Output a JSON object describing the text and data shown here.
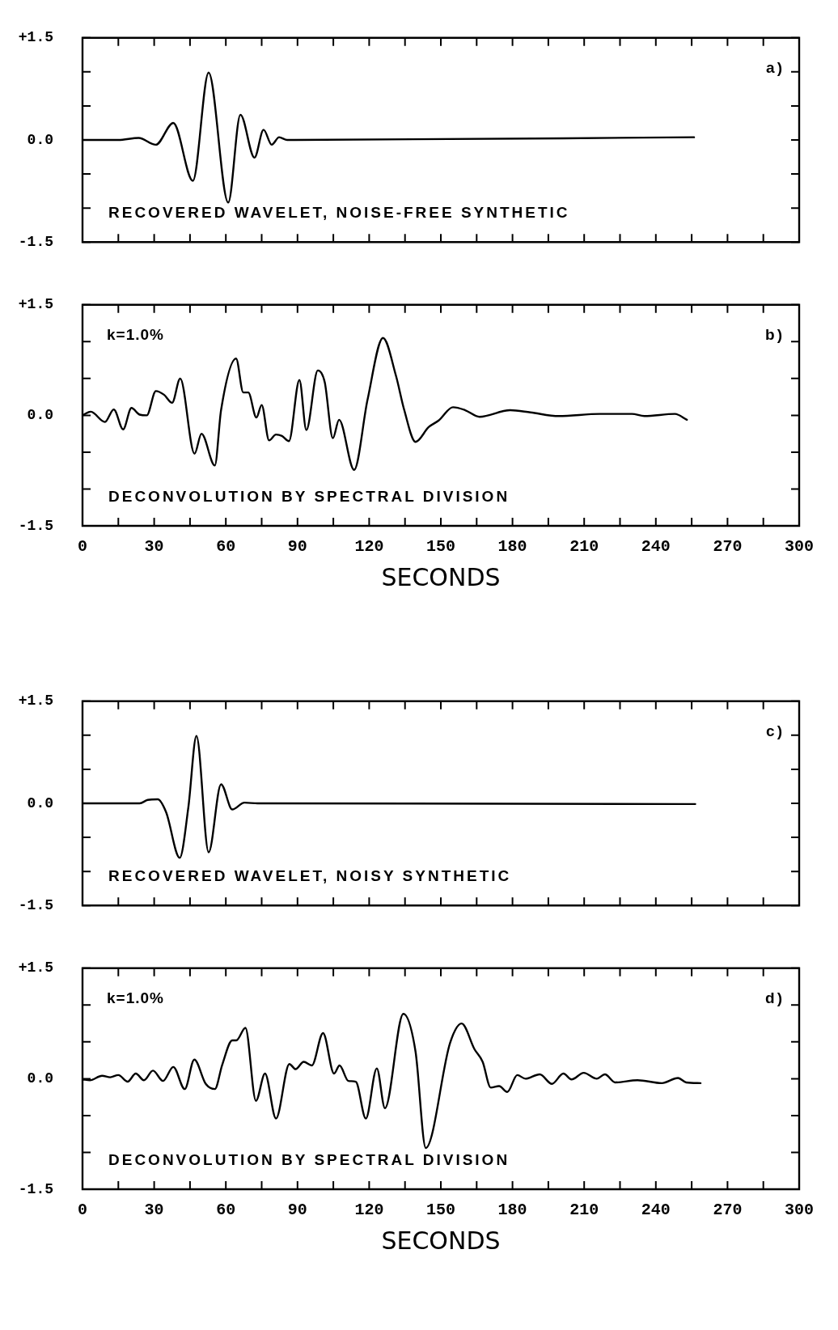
{
  "chart_data": [
    {
      "type": "line",
      "annotations": [
        "a)",
        "RECOVERED WAVELET, NOISE-FREE SYNTHETIC"
      ],
      "color": "#000000",
      "marker": "none",
      "grid": false,
      "legend": false,
      "tick_labels": "y",
      "x": [
        0,
        15,
        23.5,
        30.7,
        38,
        46.2,
        52.8,
        61,
        66.1,
        72,
        75.8,
        79.2,
        82.3,
        85.7,
        256
      ],
      "values": [
        0,
        0,
        0.03,
        -0.07,
        0.25,
        -0.6,
        0.99,
        -0.92,
        0.37,
        -0.26,
        0.15,
        -0.07,
        0.04,
        0,
        0.04
      ],
      "xlim": [
        0,
        300
      ],
      "xticks": [
        0,
        {
          "value": 15,
          "label": null
        },
        30,
        {
          "value": 45,
          "label": null
        },
        60,
        {
          "value": 75,
          "label": null
        },
        90,
        {
          "value": 105,
          "label": null
        },
        120,
        {
          "value": 135,
          "label": null
        },
        150,
        {
          "value": 165,
          "label": null
        },
        180,
        {
          "value": 195,
          "label": null
        },
        210,
        {
          "value": 225,
          "label": null
        },
        240,
        {
          "value": 255,
          "label": null
        },
        270,
        {
          "value": 285,
          "label": null
        },
        300
      ],
      "ylim": [
        -1.5,
        1.5
      ],
      "yticks": [
        {
          "value": -1.5,
          "label": "-1.5"
        },
        {
          "value": -1,
          "label": null
        },
        {
          "value": -0.5,
          "label": null
        },
        {
          "value": 0,
          "label": "0.0"
        },
        {
          "value": 0.5,
          "label": null
        },
        {
          "value": 1,
          "label": null
        },
        {
          "value": 1.5,
          "label": "+1.5"
        }
      ]
    },
    {
      "type": "line",
      "annotations": [
        "b)",
        "k=1.0%",
        "DECONVOLUTION BY SPECTRAL DIVISION"
      ],
      "xlabel": "SECONDS",
      "color": "#000000",
      "marker": "none",
      "grid": false,
      "legend": false,
      "x": [
        0,
        3.4,
        9.4,
        13.1,
        17,
        20.5,
        23.9,
        26.9,
        30.7,
        34.1,
        37.5,
        40.9,
        46.9,
        49.8,
        55.4,
        58,
        64.3,
        67.3,
        69.4,
        72.8,
        75,
        78.1,
        81,
        83.5,
        86.4,
        90.8,
        93.7,
        98.5,
        101.4,
        104.8,
        107.4,
        113.7,
        119.3,
        125.8,
        131.2,
        134.7,
        139.4,
        144.9,
        149.1,
        155.1,
        160.2,
        166.2,
        179,
        187.5,
        199.4,
        216.5,
        230,
        235.2,
        248,
        253
      ],
      "values": [
        0,
        0.05,
        -0.09,
        0.08,
        -0.19,
        0.1,
        0.01,
        0,
        0.33,
        0.28,
        0.17,
        0.5,
        -0.52,
        -0.25,
        -0.68,
        0.07,
        0.77,
        0.31,
        0.31,
        -0.03,
        0.14,
        -0.34,
        -0.26,
        -0.28,
        -0.35,
        0.48,
        -0.2,
        0.61,
        0.45,
        -0.31,
        -0.06,
        -0.74,
        0.21,
        1.05,
        0.54,
        0.07,
        -0.36,
        -0.16,
        -0.07,
        0.11,
        0.07,
        -0.02,
        0.07,
        0.04,
        -0.01,
        0.02,
        0.02,
        -0.01,
        0.02,
        -0.06
      ],
      "xlim": [
        0,
        300
      ],
      "xticks": [
        0,
        {
          "value": 15,
          "label": null
        },
        30,
        {
          "value": 45,
          "label": null
        },
        60,
        {
          "value": 75,
          "label": null
        },
        90,
        {
          "value": 105,
          "label": null
        },
        120,
        {
          "value": 135,
          "label": null
        },
        150,
        {
          "value": 165,
          "label": null
        },
        180,
        {
          "value": 195,
          "label": null
        },
        210,
        {
          "value": 225,
          "label": null
        },
        240,
        {
          "value": 255,
          "label": null
        },
        270,
        {
          "value": 285,
          "label": null
        },
        300
      ],
      "ylim": [
        -1.5,
        1.5
      ],
      "yticks": [
        {
          "value": -1.5,
          "label": "-1.5"
        },
        {
          "value": -1,
          "label": null
        },
        {
          "value": -0.5,
          "label": null
        },
        {
          "value": 0,
          "label": "0.0"
        },
        {
          "value": 0.5,
          "label": null
        },
        {
          "value": 1,
          "label": null
        },
        {
          "value": 1.5,
          "label": "+1.5"
        }
      ]
    },
    {
      "type": "line",
      "annotations": [
        "c)",
        "RECOVERED WAVELET, NOISY SYNTHETIC"
      ],
      "color": "#000000",
      "marker": "none",
      "grid": false,
      "legend": false,
      "tick_labels": "y",
      "x": [
        0,
        23.9,
        27.3,
        31.5,
        35,
        40.7,
        44.3,
        47.7,
        52.8,
        58,
        62.7,
        67.8,
        73.3,
        256.5
      ],
      "values": [
        0,
        0,
        0.05,
        0.06,
        -0.13,
        -0.8,
        -0.06,
        0.99,
        -0.72,
        0.28,
        -0.09,
        0.01,
        0,
        -0.01
      ],
      "xlim": [
        0,
        300
      ],
      "xticks": [
        0,
        {
          "value": 15,
          "label": null
        },
        30,
        {
          "value": 45,
          "label": null
        },
        60,
        {
          "value": 75,
          "label": null
        },
        90,
        {
          "value": 105,
          "label": null
        },
        120,
        {
          "value": 135,
          "label": null
        },
        150,
        {
          "value": 165,
          "label": null
        },
        180,
        {
          "value": 195,
          "label": null
        },
        210,
        {
          "value": 225,
          "label": null
        },
        240,
        {
          "value": 255,
          "label": null
        },
        270,
        {
          "value": 285,
          "label": null
        },
        300
      ],
      "ylim": [
        -1.5,
        1.5
      ],
      "yticks": [
        {
          "value": -1.5,
          "label": "-1.5"
        },
        {
          "value": -1,
          "label": null
        },
        {
          "value": -0.5,
          "label": null
        },
        {
          "value": 0,
          "label": "0.0"
        },
        {
          "value": 0.5,
          "label": null
        },
        {
          "value": 1,
          "label": null
        },
        {
          "value": 1.5,
          "label": "+1.5"
        }
      ]
    },
    {
      "type": "line",
      "annotations": [
        "d)",
        "k=1.0%",
        "DECONVOLUTION BY SPECTRAL DIVISION"
      ],
      "xlabel": "SECONDS",
      "color": "#000000",
      "marker": "none",
      "grid": false,
      "legend": false,
      "x": [
        0,
        3.1,
        8.2,
        11.6,
        15,
        18.9,
        22.3,
        25.7,
        29.5,
        33.7,
        38,
        42.8,
        46.8,
        51.6,
        55.4,
        58.5,
        62.7,
        64.4,
        68.2,
        72.6,
        76.4,
        81,
        86.6,
        89.2,
        92.6,
        96,
        100.7,
        105.3,
        107.6,
        111.3,
        114.4,
        118.6,
        123.2,
        126.6,
        134.3,
        139.4,
        143.7,
        153.9,
        158.7,
        164.1,
        167.5,
        170.9,
        174.4,
        177.8,
        182,
        185.4,
        191.4,
        196.5,
        201.3,
        204.7,
        209.8,
        215.3,
        218.7,
        223,
        232.3,
        242.5,
        249.3,
        252.7,
        258.7
      ],
      "values": [
        -0.01,
        -0.02,
        0.04,
        0.02,
        0.05,
        -0.04,
        0.07,
        -0.02,
        0.11,
        -0.03,
        0.16,
        -0.14,
        0.26,
        -0.07,
        -0.14,
        0.19,
        0.52,
        0.52,
        0.69,
        -0.3,
        0.07,
        -0.54,
        0.2,
        0.13,
        0.23,
        0.18,
        0.62,
        0.07,
        0.18,
        -0.03,
        -0.04,
        -0.54,
        0.14,
        -0.4,
        0.88,
        0.37,
        -0.94,
        0.49,
        0.75,
        0.4,
        0.23,
        -0.12,
        -0.1,
        -0.18,
        0.05,
        0,
        0.06,
        -0.07,
        0.07,
        -0.01,
        0.08,
        0,
        0.06,
        -0.05,
        -0.02,
        -0.06,
        0.01,
        -0.05,
        -0.06
      ],
      "xlim": [
        0,
        300
      ],
      "xticks": [
        0,
        {
          "value": 15,
          "label": null
        },
        30,
        {
          "value": 45,
          "label": null
        },
        60,
        {
          "value": 75,
          "label": null
        },
        90,
        {
          "value": 105,
          "label": null
        },
        120,
        {
          "value": 135,
          "label": null
        },
        150,
        {
          "value": 165,
          "label": null
        },
        180,
        {
          "value": 195,
          "label": null
        },
        210,
        {
          "value": 225,
          "label": null
        },
        240,
        {
          "value": 255,
          "label": null
        },
        270,
        {
          "value": 285,
          "label": null
        },
        300
      ],
      "ylim": [
        -1.5,
        1.5
      ],
      "yticks": [
        {
          "value": -1.5,
          "label": "-1.5"
        },
        {
          "value": -1,
          "label": null
        },
        {
          "value": -0.5,
          "label": null
        },
        {
          "value": 0,
          "label": "0.0"
        },
        {
          "value": 0.5,
          "label": null
        },
        {
          "value": 1,
          "label": null
        },
        {
          "value": 1.5,
          "label": "+1.5"
        }
      ]
    }
  ]
}
